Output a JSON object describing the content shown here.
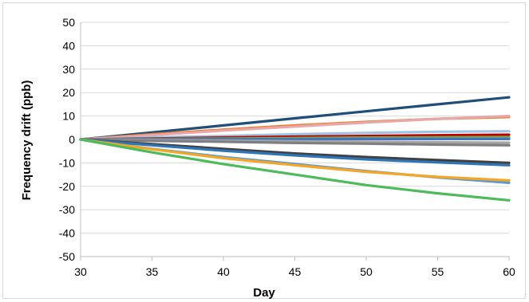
{
  "chart_data": {
    "type": "line",
    "title": "",
    "xlabel": "Day",
    "ylabel": "Frequency drift (ppb)",
    "xlim": [
      30,
      60
    ],
    "ylim": [
      -50,
      50
    ],
    "x_ticks": [
      "30",
      "35",
      "40",
      "45",
      "50",
      "55",
      "60"
    ],
    "y_ticks": [
      "50",
      "40",
      "30",
      "20",
      "10",
      "0",
      "-10",
      "-20",
      "-30",
      "-40",
      "-50"
    ],
    "grid": true,
    "legend": "none",
    "x": [
      30,
      35,
      40,
      45,
      50,
      55,
      60
    ],
    "series": [
      {
        "color": "#1f4e79",
        "values": [
          0,
          3,
          6,
          9,
          12,
          15,
          18
        ]
      },
      {
        "color": "#ed7d31",
        "values": [
          0,
          2.2,
          4.2,
          6,
          7.5,
          8.8,
          9.6
        ]
      },
      {
        "color": "#e6a8a8",
        "values": [
          0,
          1.8,
          3.8,
          5.5,
          7.2,
          8.8,
          10
        ]
      },
      {
        "color": "#9dc3e6",
        "values": [
          0,
          0.8,
          1.5,
          2.2,
          2.8,
          3.3,
          3.5
        ]
      },
      {
        "color": "#c00000",
        "values": [
          0,
          0.4,
          0.8,
          1.2,
          1.5,
          1.8,
          2
        ]
      },
      {
        "color": "#70ad47",
        "values": [
          0,
          0.2,
          0.4,
          0.6,
          0.8,
          0.9,
          1
        ]
      },
      {
        "color": "#4472c4",
        "values": [
          0,
          0.1,
          0.1,
          0.1,
          0.2,
          0.2,
          0.2
        ]
      },
      {
        "color": "#a5a5a5",
        "values": [
          0,
          -0.3,
          -0.5,
          -0.8,
          -1,
          -1.2,
          -1.4
        ]
      },
      {
        "color": "#7f7f7f",
        "values": [
          0,
          -0.6,
          -1,
          -1.5,
          -1.8,
          -2.2,
          -2.5
        ]
      },
      {
        "color": "#404040",
        "values": [
          0,
          -2,
          -4,
          -6,
          -7.5,
          -8.8,
          -10
        ]
      },
      {
        "color": "#2e75b6",
        "values": [
          0,
          -2.5,
          -4.8,
          -6.8,
          -8.5,
          -9.8,
          -11
        ]
      },
      {
        "color": "#5b9bd5",
        "values": [
          0,
          -4,
          -7.5,
          -10.5,
          -13.5,
          -16.2,
          -18.5
        ]
      },
      {
        "color": "#f5a623",
        "values": [
          0,
          -4.2,
          -8,
          -11,
          -13.8,
          -16,
          -17.5
        ]
      },
      {
        "color": "#4cbb5a",
        "values": [
          0,
          -5.5,
          -10.5,
          -15,
          -19.5,
          -23,
          -26
        ]
      }
    ]
  }
}
